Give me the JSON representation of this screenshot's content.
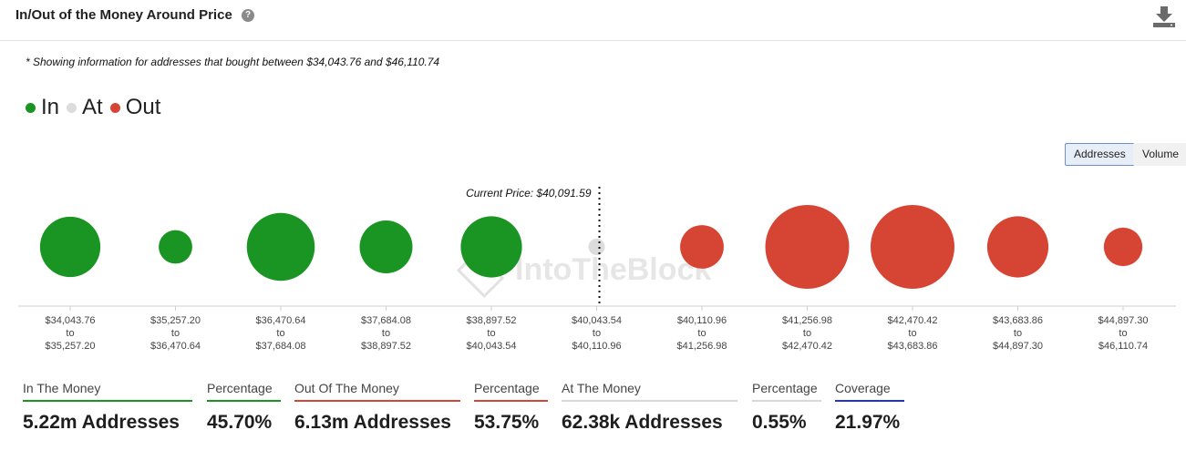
{
  "header": {
    "title": "In/Out of the Money Around Price",
    "help_icon": "?"
  },
  "note": "* Showing information for addresses that bought between $34,043.76 and $46,110.74",
  "legend": [
    {
      "label": "In",
      "color": "#1a9423"
    },
    {
      "label": "At",
      "color": "#dcdcdc"
    },
    {
      "label": "Out",
      "color": "#d64533"
    }
  ],
  "toggles": {
    "addresses": "Addresses",
    "volume": "Volume",
    "selected": "addresses"
  },
  "chart_data": {
    "type": "bubble",
    "current_price_label": "Current Price: $40,091.59",
    "current_price": 40091.59,
    "watermark": "IntoTheBlock",
    "bins": [
      {
        "from": "$34,043.76",
        "to_word": "to",
        "to": "$35,257.20",
        "status": "in",
        "relative_size": 0.72
      },
      {
        "from": "$35,257.20",
        "to_word": "to",
        "to": "$36,470.64",
        "status": "in",
        "relative_size": 0.4
      },
      {
        "from": "$36,470.64",
        "to_word": "to",
        "to": "$37,684.08",
        "status": "in",
        "relative_size": 0.81
      },
      {
        "from": "$37,684.08",
        "to_word": "to",
        "to": "$38,897.52",
        "status": "in",
        "relative_size": 0.63
      },
      {
        "from": "$38,897.52",
        "to_word": "to",
        "to": "$40,043.54",
        "status": "in",
        "relative_size": 0.73
      },
      {
        "from": "$40,043.54",
        "to_word": "to",
        "to": "$40,110.96",
        "status": "at",
        "relative_size": 0.05
      },
      {
        "from": "$40,110.96",
        "to_word": "to",
        "to": "$41,256.98",
        "status": "out",
        "relative_size": 0.52
      },
      {
        "from": "$41,256.98",
        "to_word": "to",
        "to": "$42,470.42",
        "status": "out",
        "relative_size": 1.0
      },
      {
        "from": "$42,470.42",
        "to_word": "to",
        "to": "$43,683.86",
        "status": "out",
        "relative_size": 1.0
      },
      {
        "from": "$43,683.86",
        "to_word": "to",
        "to": "$44,897.30",
        "status": "out",
        "relative_size": 0.73
      },
      {
        "from": "$44,897.30",
        "to_word": "to",
        "to": "$46,110.74",
        "status": "out",
        "relative_size": 0.46
      }
    ]
  },
  "stats": [
    {
      "label": "In The Money",
      "value": "5.22m Addresses",
      "underline": "#1a9423"
    },
    {
      "label": "Percentage",
      "value": "45.70%",
      "underline": "#1a9423"
    },
    {
      "label": "Out Of The Money",
      "value": "6.13m Addresses",
      "underline": "#d64533"
    },
    {
      "label": "Percentage",
      "value": "53.75%",
      "underline": "#d64533"
    },
    {
      "label": "At The Money",
      "value": "62.38k Addresses",
      "underline": "#d8d8d8"
    },
    {
      "label": "Percentage",
      "value": "0.55%",
      "underline": "#d8d8d8"
    },
    {
      "label": "Coverage",
      "value": "21.97%",
      "underline": "#2131d6"
    }
  ]
}
